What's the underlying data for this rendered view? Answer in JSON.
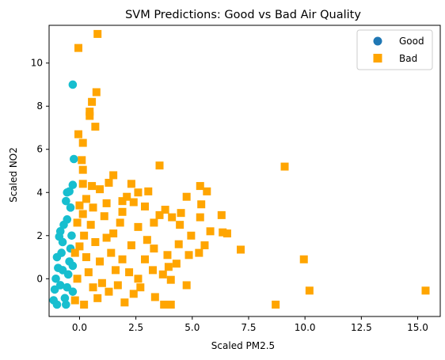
{
  "chart_data": {
    "type": "scatter",
    "title": "SVM Predictions: Good vs Bad Air Quality",
    "xlabel": "Scaled PM2.5",
    "ylabel": "Scaled NO2",
    "xlim": [
      -1.35,
      16.0
    ],
    "ylim": [
      -1.75,
      11.75
    ],
    "xticks": [
      0.0,
      2.5,
      5.0,
      7.5,
      10.0,
      12.5,
      15.0
    ],
    "xtick_labels": [
      "0.0",
      "2.5",
      "5.0",
      "7.5",
      "10.0",
      "12.5",
      "15.0"
    ],
    "yticks": [
      0,
      2,
      4,
      6,
      8,
      10
    ],
    "ytick_labels": [
      "0",
      "2",
      "4",
      "6",
      "8",
      "10"
    ],
    "grid": false,
    "legend_position": "top-right",
    "series": [
      {
        "name": "Good",
        "marker": "circle",
        "color": "#17becf",
        "legend_color": "#1f77b4",
        "points": [
          [
            -0.3,
            9.0
          ],
          [
            -0.25,
            5.55
          ],
          [
            -0.55,
            4.0
          ],
          [
            -0.45,
            4.05
          ],
          [
            -0.3,
            4.35
          ],
          [
            -0.6,
            3.6
          ],
          [
            -0.4,
            3.3
          ],
          [
            -0.55,
            2.75
          ],
          [
            -0.7,
            2.5
          ],
          [
            -0.85,
            2.2
          ],
          [
            -0.9,
            1.95
          ],
          [
            -0.75,
            1.7
          ],
          [
            -1.0,
            1.0
          ],
          [
            -0.8,
            1.2
          ],
          [
            -0.95,
            0.5
          ],
          [
            -1.05,
            0.0
          ],
          [
            -1.1,
            -0.5
          ],
          [
            -1.15,
            -1.0
          ],
          [
            -1.0,
            -1.2
          ],
          [
            -0.6,
            -1.2
          ],
          [
            -0.35,
            2.0
          ],
          [
            -0.4,
            1.4
          ],
          [
            -0.45,
            0.8
          ],
          [
            -0.5,
            0.2
          ],
          [
            -0.55,
            -0.4
          ],
          [
            -0.65,
            -0.9
          ],
          [
            -0.85,
            -0.3
          ],
          [
            -0.75,
            0.4
          ],
          [
            -0.3,
            -0.6
          ],
          [
            -0.3,
            0.6
          ]
        ]
      },
      {
        "name": "Bad",
        "marker": "square",
        "color": "#ffa500",
        "legend_color": "#ffa500",
        "points": [
          [
            0.8,
            11.35
          ],
          [
            -0.05,
            10.7
          ],
          [
            0.75,
            8.65
          ],
          [
            0.55,
            8.2
          ],
          [
            0.45,
            7.75
          ],
          [
            0.45,
            7.55
          ],
          [
            0.7,
            7.05
          ],
          [
            -0.05,
            6.7
          ],
          [
            0.15,
            6.3
          ],
          [
            0.1,
            5.5
          ],
          [
            0.15,
            5.05
          ],
          [
            0.15,
            4.4
          ],
          [
            0.55,
            4.3
          ],
          [
            0.9,
            4.15
          ],
          [
            1.5,
            4.8
          ],
          [
            1.3,
            4.45
          ],
          [
            3.55,
            5.25
          ],
          [
            2.3,
            4.4
          ],
          [
            2.6,
            4.0
          ],
          [
            3.05,
            4.05
          ],
          [
            2.1,
            3.8
          ],
          [
            1.9,
            3.6
          ],
          [
            2.4,
            3.55
          ],
          [
            1.2,
            3.5
          ],
          [
            0.3,
            3.7
          ],
          [
            0.0,
            3.4
          ],
          [
            0.6,
            3.3
          ],
          [
            4.75,
            3.8
          ],
          [
            5.35,
            4.3
          ],
          [
            5.65,
            4.05
          ],
          [
            3.8,
            3.2
          ],
          [
            3.55,
            2.95
          ],
          [
            4.1,
            2.85
          ],
          [
            4.5,
            3.05
          ],
          [
            4.45,
            2.5
          ],
          [
            5.4,
            3.45
          ],
          [
            5.35,
            2.85
          ],
          [
            6.3,
            2.95
          ],
          [
            5.8,
            2.2
          ],
          [
            6.35,
            2.15
          ],
          [
            6.55,
            2.1
          ],
          [
            4.95,
            2.0
          ],
          [
            5.55,
            1.55
          ],
          [
            7.15,
            1.35
          ],
          [
            9.1,
            5.2
          ],
          [
            9.95,
            0.9
          ],
          [
            10.2,
            -0.55
          ],
          [
            15.35,
            -0.55
          ],
          [
            8.7,
            -1.2
          ],
          [
            4.75,
            -0.3
          ],
          [
            4.05,
            -0.05
          ],
          [
            3.35,
            -0.85
          ],
          [
            3.75,
            -1.2
          ],
          [
            4.05,
            -1.2
          ],
          [
            3.25,
            0.4
          ],
          [
            3.7,
            0.2
          ],
          [
            3.95,
            0.55
          ],
          [
            4.4,
            1.6
          ],
          [
            4.85,
            1.1
          ],
          [
            5.3,
            1.2
          ],
          [
            3.0,
            1.8
          ],
          [
            2.6,
            2.4
          ],
          [
            2.3,
            1.55
          ],
          [
            1.8,
            2.6
          ],
          [
            1.5,
            2.1
          ],
          [
            1.1,
            2.9
          ],
          [
            0.5,
            2.5
          ],
          [
            0.2,
            2.0
          ],
          [
            0.0,
            1.5
          ],
          [
            -0.2,
            1.2
          ],
          [
            0.3,
            1.0
          ],
          [
            0.9,
            0.8
          ],
          [
            1.4,
            1.2
          ],
          [
            1.9,
            0.9
          ],
          [
            2.2,
            0.3
          ],
          [
            2.6,
            0.0
          ],
          [
            1.7,
            -0.3
          ],
          [
            1.3,
            -0.6
          ],
          [
            0.8,
            -0.9
          ],
          [
            0.2,
            -1.2
          ],
          [
            -0.2,
            -1.0
          ],
          [
            -0.1,
            0.0
          ],
          [
            0.4,
            0.3
          ],
          [
            1.0,
            -0.2
          ],
          [
            1.6,
            0.4
          ],
          [
            2.4,
            -0.7
          ],
          [
            2.9,
            0.9
          ],
          [
            3.3,
            1.4
          ],
          [
            0.7,
            1.7
          ],
          [
            1.2,
            1.9
          ],
          [
            -0.1,
            2.6
          ],
          [
            0.15,
            3.0
          ],
          [
            0.6,
            -0.4
          ],
          [
            2.0,
            -1.1
          ],
          [
            2.7,
            -0.4
          ],
          [
            3.9,
            1.1
          ],
          [
            4.3,
            0.7
          ],
          [
            1.9,
            3.1
          ],
          [
            2.9,
            3.35
          ],
          [
            3.3,
            2.6
          ]
        ]
      }
    ]
  }
}
